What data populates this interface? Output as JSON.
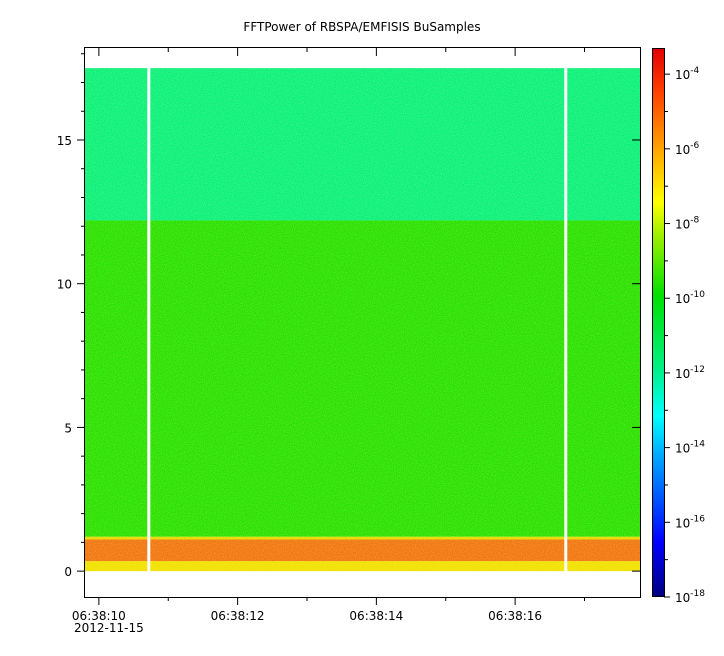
{
  "chart_data": {
    "type": "heatmap",
    "title": "FFTPower of RBSPA/EMFISIS  BuSamples",
    "xlabel": "",
    "ylabel": "",
    "xlim": [
      9.8,
      17.8
    ],
    "ylim": [
      -0.9,
      18.2
    ],
    "x_ticks": [
      {
        "value": 10,
        "label": "06:38:10"
      },
      {
        "value": 12,
        "label": "06:38:12"
      },
      {
        "value": 14,
        "label": "06:38:14"
      },
      {
        "value": 16,
        "label": "06:38:16"
      }
    ],
    "x_minor_ticks": [
      11,
      13,
      15,
      17
    ],
    "x_date_label": "2012-11-15",
    "y_ticks": [
      {
        "value": 0,
        "label": "0"
      },
      {
        "value": 5,
        "label": "5"
      },
      {
        "value": 10,
        "label": "10"
      },
      {
        "value": 15,
        "label": "15"
      }
    ],
    "colorbar": {
      "scale": "log",
      "range_exponents": [
        -18,
        -3.3
      ],
      "ticks": [
        {
          "exp": -4,
          "base": "10",
          "label": "-4"
        },
        {
          "exp": -6,
          "base": "10",
          "label": "-6"
        },
        {
          "exp": -8,
          "base": "10",
          "label": "-8"
        },
        {
          "exp": -10,
          "base": "10",
          "label": "-10"
        },
        {
          "exp": -12,
          "base": "10",
          "label": "-12"
        },
        {
          "exp": -14,
          "base": "10",
          "label": "-14"
        },
        {
          "exp": -16,
          "base": "10",
          "label": "-16"
        },
        {
          "exp": -18,
          "base": "10",
          "label": "-18"
        }
      ]
    },
    "data_extent": {
      "x": [
        9.8,
        17.8
      ],
      "y": [
        0.0,
        17.5
      ]
    },
    "gaps_x": [
      10.72,
      16.73
    ],
    "bands": [
      {
        "y": [
          0.0,
          0.35
        ],
        "power_exp": -8.0,
        "color": "#f0e000"
      },
      {
        "y": [
          0.35,
          1.1
        ],
        "power_exp": -7.0,
        "color": "#f07010"
      },
      {
        "y": [
          1.1,
          1.2
        ],
        "power_exp": -8.2,
        "color": "#e8d800"
      },
      {
        "y": [
          1.2,
          12.2
        ],
        "power_exp": -10.0,
        "color": "#20e000"
      },
      {
        "y": [
          12.2,
          17.5
        ],
        "power_exp": -11.5,
        "color": "#00f080"
      }
    ]
  }
}
